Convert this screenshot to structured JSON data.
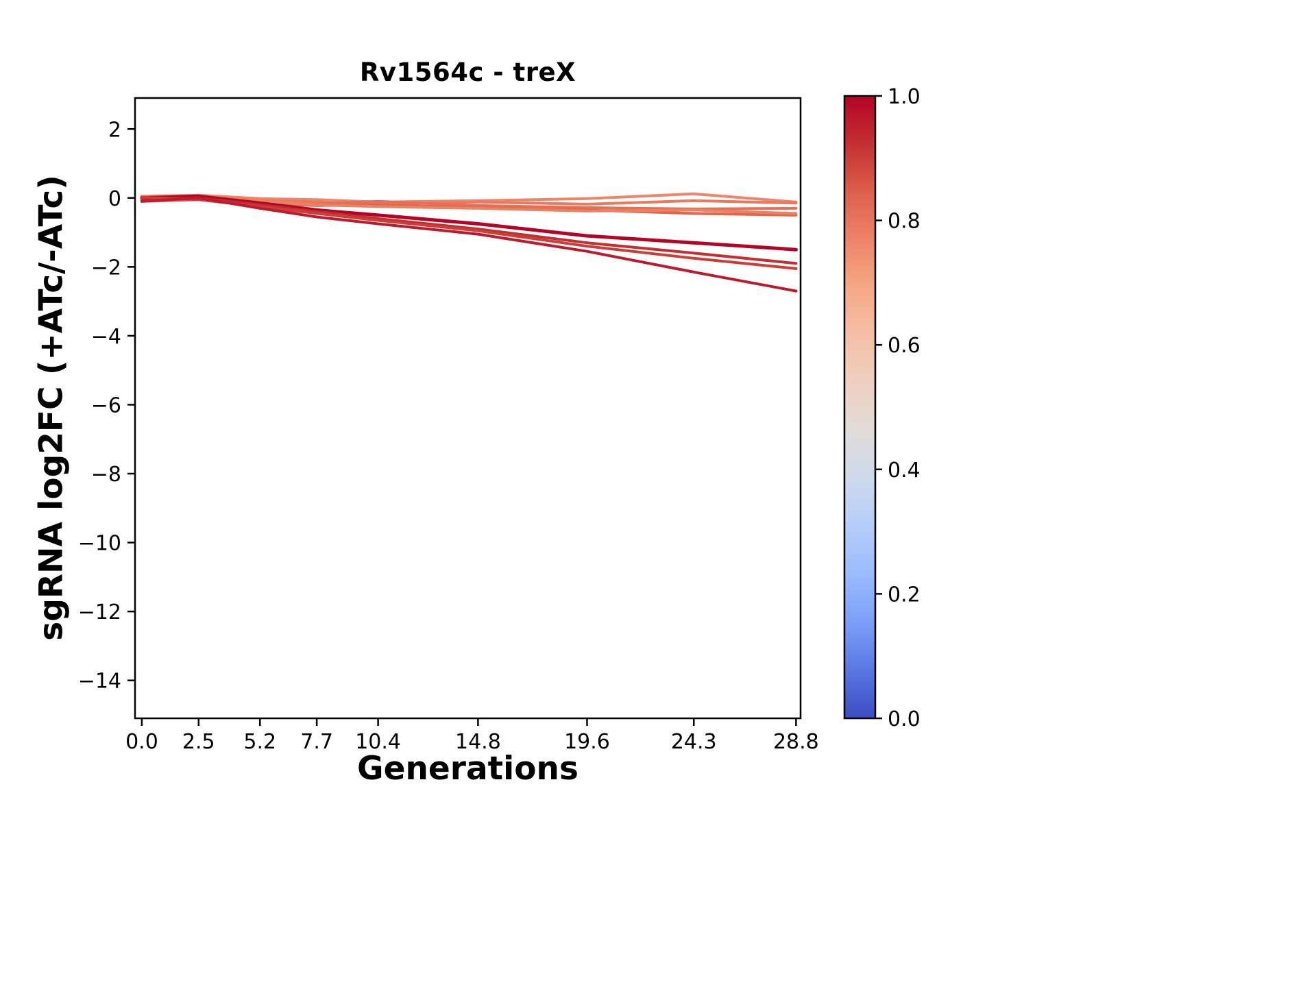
{
  "chart_data": {
    "type": "line",
    "title": "Rv1564c - treX",
    "xlabel": "Generations",
    "ylabel": "sgRNA log2FC (+ATc/-ATc)",
    "x": [
      0.0,
      2.5,
      5.2,
      7.7,
      10.4,
      14.8,
      19.6,
      24.3,
      28.8
    ],
    "xtick_labels": [
      "0.0",
      "2.5",
      "5.2",
      "7.7",
      "10.4",
      "14.8",
      "19.6",
      "24.3",
      "28.8"
    ],
    "yticks": [
      2,
      0,
      -2,
      -4,
      -6,
      -8,
      -10,
      -12,
      -14
    ],
    "xlim": [
      -0.3,
      29.0
    ],
    "ylim": [
      -15.1,
      2.9
    ],
    "grid": false,
    "legend": "none",
    "axis_color": "#000000",
    "background": "#ffffff",
    "series": [
      {
        "color": "#ee8468",
        "width": 4,
        "values": [
          0.05,
          0.08,
          -0.02,
          -0.05,
          -0.12,
          -0.08,
          -0.02,
          0.12,
          -0.12
        ]
      },
      {
        "color": "#e97a5f",
        "width": 4,
        "values": [
          0.0,
          0.05,
          -0.08,
          -0.12,
          -0.18,
          -0.12,
          -0.18,
          -0.08,
          -0.15
        ]
      },
      {
        "color": "#e4705a",
        "width": 4,
        "values": [
          -0.05,
          0.02,
          -0.12,
          -0.18,
          -0.1,
          -0.22,
          -0.28,
          -0.32,
          -0.3
        ]
      },
      {
        "color": "#e0654f",
        "width": 4,
        "values": [
          -0.1,
          -0.05,
          -0.15,
          -0.22,
          -0.2,
          -0.28,
          -0.35,
          -0.45,
          -0.5
        ]
      },
      {
        "color": "#ea8262",
        "width": 4,
        "values": [
          -0.08,
          0.05,
          -0.1,
          -0.2,
          -0.25,
          -0.3,
          -0.38,
          -0.35,
          -0.45
        ]
      },
      {
        "color": "#b40426",
        "width": 5,
        "values": [
          0.0,
          0.05,
          -0.15,
          -0.35,
          -0.5,
          -0.75,
          -1.1,
          -1.3,
          -1.5
        ]
      },
      {
        "color": "#c32e31",
        "width": 4,
        "values": [
          -0.05,
          0.0,
          -0.2,
          -0.4,
          -0.6,
          -0.9,
          -1.3,
          -1.6,
          -1.9
        ]
      },
      {
        "color": "#cb3e38",
        "width": 4,
        "values": [
          0.02,
          -0.05,
          -0.25,
          -0.45,
          -0.65,
          -0.95,
          -1.4,
          -1.75,
          -2.05
        ]
      },
      {
        "color": "#bb1b2c",
        "width": 4,
        "values": [
          -0.1,
          0.0,
          -0.3,
          -0.55,
          -0.75,
          -1.05,
          -1.55,
          -2.15,
          -2.7
        ]
      }
    ],
    "colorbar": {
      "min": 0.0,
      "max": 1.0,
      "ticks": [
        "0.0",
        "0.2",
        "0.4",
        "0.6",
        "0.8",
        "1.0"
      ],
      "colors_bottom_to_top": [
        "#3b4cc0",
        "#5977e3",
        "#7b9ff9",
        "#9abbff",
        "#b5cdfa",
        "#cdd9ec",
        "#e0dbd8",
        "#eed0c0",
        "#f5bfa6",
        "#f5a886",
        "#ee8468",
        "#dd5f4b",
        "#c43032",
        "#b40426"
      ]
    }
  }
}
